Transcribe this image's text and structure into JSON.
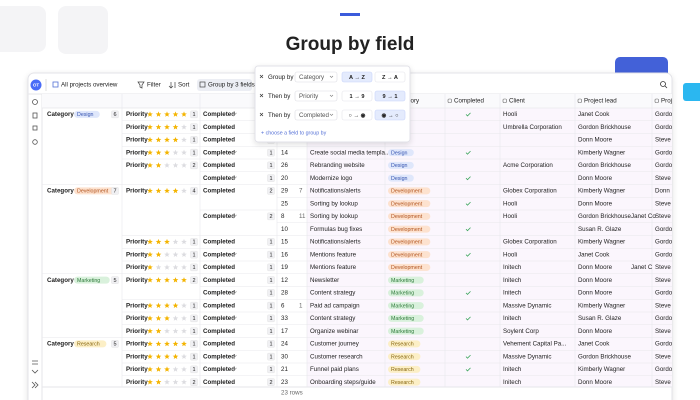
{
  "header": {
    "title": "Group by field"
  },
  "toolbar": {
    "avatar": "OT",
    "view": "All projects overview",
    "filter": "Filter",
    "sort": "Sort",
    "group": "Group by 3 fields"
  },
  "fields": {
    "category": "Category",
    "priority": "Priority",
    "completed": "Completed"
  },
  "columns": [
    "Category",
    "Completed",
    "Client",
    "Project lead",
    "Proje"
  ],
  "popup": {
    "rows": [
      {
        "label": "Group by",
        "field": "Category",
        "options": [
          "A → Z",
          "Z → A"
        ],
        "selected": 0
      },
      {
        "label": "Then by",
        "field": "Priority",
        "options": [
          "1 → 9",
          "9 → 1"
        ],
        "selected": 1
      },
      {
        "label": "Then by",
        "field": "Completed",
        "options": [
          "○ → ◉",
          "◉ → ○"
        ],
        "selected": 1
      }
    ],
    "footer": "+ choose a field to group by"
  },
  "groups": [
    {
      "name": "Design",
      "count": 6,
      "color": "#dfe7fb",
      "text_color": "#3553b0",
      "priorities": [
        {
          "rating": 5,
          "count": 1,
          "completed": [
            {
              "done": true,
              "count": 1
            }
          ]
        },
        {
          "rating": 4,
          "count": 1,
          "completed": [
            {
              "done": false,
              "count": 1
            }
          ]
        },
        {
          "rating": 4,
          "count": 1,
          "completed": [
            {
              "done": false,
              "count": 1
            }
          ]
        },
        {
          "rating": 3,
          "count": 1,
          "completed": [
            {
              "done": true,
              "count": 1
            }
          ]
        },
        {
          "rating": 2,
          "count": 2,
          "completed": [
            {
              "done": false,
              "count": 1
            },
            {
              "done": true,
              "count": 1
            }
          ]
        }
      ]
    },
    {
      "name": "Development",
      "count": 7,
      "color": "#fde2cf",
      "text_color": "#b0521d",
      "priorities": [
        {
          "rating": 4,
          "count": 4,
          "completed": [
            {
              "done": false,
              "count": 2
            },
            {
              "done": true,
              "count": 2
            }
          ]
        },
        {
          "rating": 3,
          "count": 1,
          "completed": [
            {
              "done": false,
              "count": 1
            }
          ]
        },
        {
          "rating": 2,
          "count": 1,
          "completed": [
            {
              "done": true,
              "count": 1
            }
          ]
        },
        {
          "rating": 1,
          "count": 1,
          "completed": [
            {
              "done": false,
              "count": 1
            }
          ]
        }
      ]
    },
    {
      "name": "Marketing",
      "count": 5,
      "color": "#d9f1dc",
      "text_color": "#2f7a3b",
      "priorities": [
        {
          "rating": 5,
          "count": 2,
          "completed": [
            {
              "done": false,
              "count": 1
            },
            {
              "done": true,
              "count": 1
            }
          ]
        },
        {
          "rating": 4,
          "count": 1,
          "completed": [
            {
              "done": false,
              "count": 1
            }
          ]
        },
        {
          "rating": 3,
          "count": 1,
          "completed": [
            {
              "done": true,
              "count": 1
            }
          ]
        },
        {
          "rating": 2,
          "count": 1,
          "completed": [
            {
              "done": false,
              "count": 1
            }
          ]
        }
      ]
    },
    {
      "name": "Research",
      "count": 5,
      "color": "#fcefc6",
      "text_color": "#86650f",
      "priorities": [
        {
          "rating": 5,
          "count": 1,
          "completed": [
            {
              "done": false,
              "count": 1
            }
          ]
        },
        {
          "rating": 4,
          "count": 1,
          "completed": [
            {
              "done": true,
              "count": 1
            }
          ]
        },
        {
          "rating": 3,
          "count": 1,
          "completed": [
            {
              "done": true,
              "count": 1
            }
          ]
        },
        {
          "rating": 2,
          "count": 2,
          "completed": [
            {
              "done": false,
              "count": 2
            }
          ]
        }
      ]
    }
  ],
  "rows": [
    {
      "completed": true,
      "client": "Hooli",
      "lead": [
        "Janet Cook"
      ],
      "project": "Gordon"
    },
    {
      "completed": false,
      "client": "Umbrella Corporation",
      "lead": [
        "Gordon Brickhouse"
      ],
      "project": "Gordon"
    },
    {
      "completed": false,
      "lead": [
        "Donn Moore"
      ],
      "project": "Steve"
    },
    {
      "id": 14,
      "name": "Create social media templa...",
      "category": "Design",
      "completed": true,
      "lead": [
        "Kimberly Wagner"
      ],
      "project": "Gordon"
    },
    {
      "id": 26,
      "name": "Rebranding website",
      "category": "Design",
      "completed": false,
      "client": "Acme Corporation",
      "lead": [
        "Gordon Brickhouse"
      ],
      "project": "Gordon"
    },
    {
      "id": 20,
      "name": "Modernize logo",
      "category": "Design",
      "completed": true,
      "lead": [
        "Donn Moore"
      ],
      "project": "Steve"
    },
    {
      "id": 29,
      "badge": 7,
      "name": "Notifications/alerts",
      "category": "Development",
      "completed": false,
      "client": "Globex Corporation",
      "lead": [
        "Kimberly Wagner"
      ],
      "project": "Donn"
    },
    {
      "id": 25,
      "name": "Sorting by lookup",
      "category": "Development",
      "completed": true,
      "client": "Hooli",
      "lead": [
        "Donn Moore"
      ],
      "project": "Steve C"
    },
    {
      "id": 8,
      "badge": 11,
      "name": "Sorting by lookup",
      "category": "Development",
      "completed": false,
      "client": "Hooli",
      "lead": [
        "Gordon Brickhouse",
        "Janet Co"
      ],
      "project": "Steve C"
    },
    {
      "id": 10,
      "name": "Formulas bug fixes",
      "category": "Development",
      "completed": true,
      "lead": [
        "Susan R. Glaze"
      ],
      "project": "Gordon"
    },
    {
      "id": 15,
      "name": "Notifications/alerts",
      "category": "Development",
      "completed": false,
      "client": "Globex Corporation",
      "lead": [
        "Kimberly Wagner"
      ],
      "project": "Gordon"
    },
    {
      "id": 16,
      "name": "Mentions feature",
      "category": "Development",
      "completed": true,
      "client": "Hooli",
      "lead": [
        "Janet Cook"
      ],
      "project": "Gordon"
    },
    {
      "id": 19,
      "name": "Mentions feature",
      "category": "Development",
      "completed": false,
      "client": "Initech",
      "lead": [
        "Donn Moore",
        "Janet C"
      ],
      "project": "Steve"
    },
    {
      "id": 12,
      "name": "Newsletter",
      "category": "Marketing",
      "completed": false,
      "client": "Initech",
      "lead": [
        "Donn Moore"
      ],
      "project": "Steve"
    },
    {
      "id": 28,
      "name": "Content strategy",
      "category": "Marketing",
      "completed": true,
      "client": "Initech",
      "lead": [
        "Donn Moore"
      ],
      "project": "Gordon"
    },
    {
      "id": 6,
      "badge": 1,
      "name": "Paid ad campaign",
      "category": "Marketing",
      "completed": false,
      "client": "Massive Dynamic",
      "lead": [
        "Kimberly Wagner"
      ],
      "project": "Steve"
    },
    {
      "id": 33,
      "name": "Content strategy",
      "category": "Marketing",
      "completed": true,
      "client": "Initech",
      "lead": [
        "Susan R. Glaze"
      ],
      "project": "Gordon"
    },
    {
      "id": 17,
      "name": "Organize webinar",
      "category": "Marketing",
      "completed": false,
      "client": "Soylent Corp",
      "lead": [
        "Donn Moore"
      ],
      "project": "Steve"
    },
    {
      "id": 24,
      "name": "Customer journey",
      "category": "Research",
      "completed": false,
      "client": "Vehement Capital Pa...",
      "lead": [
        "Janet Cook"
      ],
      "project": "Gordon"
    },
    {
      "id": 30,
      "name": "Customer research",
      "category": "Research",
      "completed": true,
      "client": "Massive Dynamic",
      "lead": [
        "Gordon Brickhouse"
      ],
      "project": "Steve"
    },
    {
      "id": 21,
      "name": "Funnel paid plans",
      "category": "Research",
      "completed": true,
      "client": "Initech",
      "lead": [
        "Kimberly Wagner"
      ],
      "project": "Gordon"
    },
    {
      "id": 23,
      "name": "Onboarding steps/guide",
      "category": "Research",
      "completed": false,
      "client": "Initech",
      "lead": [
        "Donn Moore"
      ],
      "project": "Steve"
    }
  ],
  "footer": "23 rows"
}
